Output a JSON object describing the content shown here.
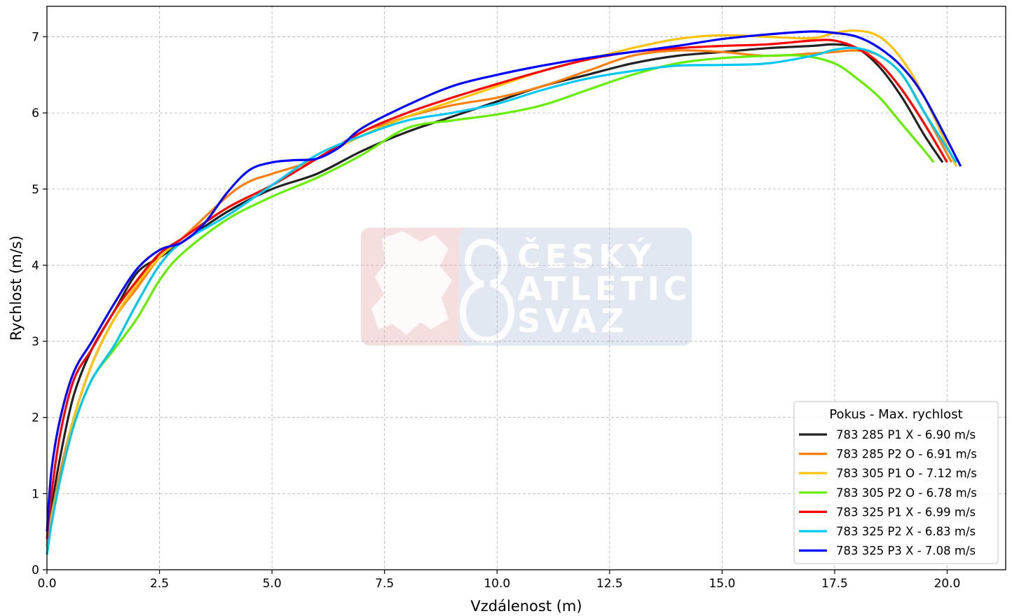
{
  "chart_data": {
    "type": "line",
    "title": "",
    "xlabel": "Vzdálenost (m)",
    "ylabel": "Rychlost (m/s)",
    "xlim": [
      0,
      21.3
    ],
    "ylim": [
      0,
      7.4
    ],
    "xticks": [
      0.0,
      2.5,
      5.0,
      7.5,
      10.0,
      12.5,
      15.0,
      17.5,
      20.0
    ],
    "yticks": [
      0,
      1,
      2,
      3,
      4,
      5,
      6,
      7
    ],
    "xtick_labels": [
      "0.0",
      "2.5",
      "5.0",
      "7.5",
      "10.0",
      "12.5",
      "15.0",
      "17.5",
      "20.0"
    ],
    "ytick_labels": [
      "0",
      "1",
      "2",
      "3",
      "4",
      "5",
      "6",
      "7"
    ],
    "grid": true,
    "legend": {
      "title": "Pokus - Max. rychlost",
      "placement": "lower-right"
    },
    "watermark": {
      "lines": [
        "ČESKÝ",
        "ATLETICKÝ",
        "SVAZ"
      ]
    },
    "series": [
      {
        "name": "783 285 P1 X - 6.90 m/s",
        "color": "#222222",
        "x": [
          0,
          0.1,
          0.3,
          0.6,
          1.0,
          1.5,
          2.0,
          2.5,
          3.0,
          4.0,
          5.0,
          6.0,
          7.0,
          8.0,
          9.0,
          10.0,
          11.0,
          12.0,
          13.0,
          14.0,
          15.0,
          16.0,
          17.0,
          17.5,
          18.0,
          18.5,
          19.0,
          19.5,
          19.9
        ],
        "y": [
          0.3,
          0.8,
          1.5,
          2.3,
          2.9,
          3.4,
          3.9,
          4.1,
          4.3,
          4.7,
          5.0,
          5.2,
          5.5,
          5.75,
          5.95,
          6.15,
          6.35,
          6.5,
          6.65,
          6.75,
          6.8,
          6.85,
          6.88,
          6.9,
          6.85,
          6.6,
          6.2,
          5.7,
          5.35
        ]
      },
      {
        "name": "783 285 P2 O - 6.91 m/s",
        "color": "#ff7f0e",
        "x": [
          0,
          0.1,
          0.3,
          0.6,
          1.0,
          1.5,
          2.0,
          2.5,
          3.0,
          4.0,
          4.5,
          5.0,
          6.0,
          7.0,
          7.5,
          8.0,
          9.0,
          10.0,
          11.0,
          12.0,
          13.0,
          14.0,
          15.0,
          16.0,
          17.0,
          17.5,
          18.0,
          18.5,
          19.0,
          19.5,
          20.1
        ],
        "y": [
          0.3,
          0.7,
          1.3,
          2.0,
          2.7,
          3.3,
          3.7,
          4.1,
          4.35,
          4.9,
          5.1,
          5.2,
          5.4,
          5.75,
          5.85,
          5.95,
          6.1,
          6.2,
          6.35,
          6.55,
          6.75,
          6.82,
          6.8,
          6.75,
          6.78,
          6.8,
          6.82,
          6.75,
          6.5,
          6.0,
          5.35
        ]
      },
      {
        "name": "783 305 P1 O - 7.12 m/s",
        "color": "#ffc20a",
        "x": [
          0,
          0.1,
          0.3,
          0.6,
          1.0,
          1.5,
          2.0,
          2.5,
          3.0,
          4.0,
          5.0,
          6.0,
          7.0,
          8.0,
          9.0,
          10.0,
          11.0,
          12.0,
          13.0,
          14.0,
          15.0,
          16.0,
          17.0,
          17.5,
          18.0,
          18.5,
          19.0,
          19.5,
          20.2
        ],
        "y": [
          0.3,
          0.7,
          1.2,
          2.0,
          2.7,
          3.3,
          3.75,
          4.1,
          4.35,
          4.75,
          5.05,
          5.4,
          5.7,
          5.95,
          6.15,
          6.35,
          6.55,
          6.7,
          6.85,
          6.97,
          7.02,
          7.0,
          6.98,
          7.05,
          7.08,
          7.0,
          6.7,
          6.2,
          5.3
        ]
      },
      {
        "name": "783 305 P2 O - 6.78 m/s",
        "color": "#66ee00",
        "x": [
          0,
          0.1,
          0.3,
          0.6,
          1.0,
          1.5,
          2.0,
          2.5,
          3.0,
          4.0,
          5.0,
          6.0,
          7.0,
          8.0,
          9.0,
          10.0,
          11.0,
          12.0,
          13.0,
          14.0,
          15.0,
          16.0,
          16.8,
          17.5,
          18.0,
          18.5,
          19.0,
          19.5,
          19.7
        ],
        "y": [
          0.2,
          0.6,
          1.2,
          1.9,
          2.5,
          2.9,
          3.3,
          3.8,
          4.15,
          4.6,
          4.9,
          5.15,
          5.45,
          5.8,
          5.9,
          5.98,
          6.1,
          6.3,
          6.5,
          6.65,
          6.72,
          6.75,
          6.75,
          6.65,
          6.45,
          6.2,
          5.85,
          5.5,
          5.35
        ]
      },
      {
        "name": "783 325 P1 X - 6.99 m/s",
        "color": "#ff0000",
        "x": [
          0,
          0.1,
          0.3,
          0.6,
          1.0,
          1.5,
          2.0,
          2.5,
          3.0,
          4.0,
          5.0,
          6.0,
          7.0,
          8.0,
          9.0,
          10.0,
          11.0,
          12.0,
          13.0,
          14.0,
          15.0,
          16.0,
          17.0,
          17.5,
          18.0,
          18.5,
          19.0,
          19.5,
          20.0
        ],
        "y": [
          0.4,
          1.0,
          1.8,
          2.5,
          2.9,
          3.4,
          3.8,
          4.15,
          4.35,
          4.75,
          5.05,
          5.4,
          5.75,
          6.0,
          6.2,
          6.38,
          6.55,
          6.7,
          6.8,
          6.85,
          6.88,
          6.9,
          6.95,
          6.95,
          6.85,
          6.65,
          6.3,
          5.85,
          5.35
        ]
      },
      {
        "name": "783 325 P2 X - 6.83 m/s",
        "color": "#00c8f0",
        "x": [
          0,
          0.1,
          0.3,
          0.6,
          1.0,
          1.5,
          2.0,
          2.5,
          3.0,
          4.0,
          5.0,
          6.0,
          7.0,
          8.0,
          9.0,
          10.0,
          11.0,
          12.0,
          13.0,
          14.0,
          15.0,
          16.0,
          17.0,
          17.5,
          18.0,
          18.5,
          19.0,
          19.5,
          20.2
        ],
        "y": [
          0.2,
          0.6,
          1.2,
          1.9,
          2.5,
          2.95,
          3.5,
          4.0,
          4.3,
          4.65,
          5.05,
          5.45,
          5.7,
          5.9,
          6.0,
          6.12,
          6.3,
          6.45,
          6.55,
          6.62,
          6.63,
          6.65,
          6.75,
          6.83,
          6.85,
          6.75,
          6.5,
          6.0,
          5.35
        ]
      },
      {
        "name": "783 325 P3 X - 7.08 m/s",
        "color": "#0000ff",
        "x": [
          0,
          0.1,
          0.3,
          0.6,
          1.0,
          1.5,
          2.0,
          2.5,
          3.0,
          3.5,
          4.0,
          4.5,
          5.0,
          5.5,
          6.0,
          6.5,
          7.0,
          8.0,
          9.0,
          10.0,
          11.0,
          12.0,
          13.0,
          14.0,
          15.0,
          16.0,
          17.0,
          17.5,
          18.0,
          18.5,
          19.0,
          19.5,
          20.3
        ],
        "y": [
          0.5,
          1.3,
          2.0,
          2.6,
          3.0,
          3.5,
          3.95,
          4.2,
          4.3,
          4.55,
          4.95,
          5.25,
          5.35,
          5.38,
          5.4,
          5.55,
          5.8,
          6.1,
          6.35,
          6.5,
          6.62,
          6.72,
          6.8,
          6.88,
          6.97,
          7.03,
          7.07,
          7.05,
          7.0,
          6.85,
          6.6,
          6.2,
          5.3
        ]
      }
    ]
  }
}
